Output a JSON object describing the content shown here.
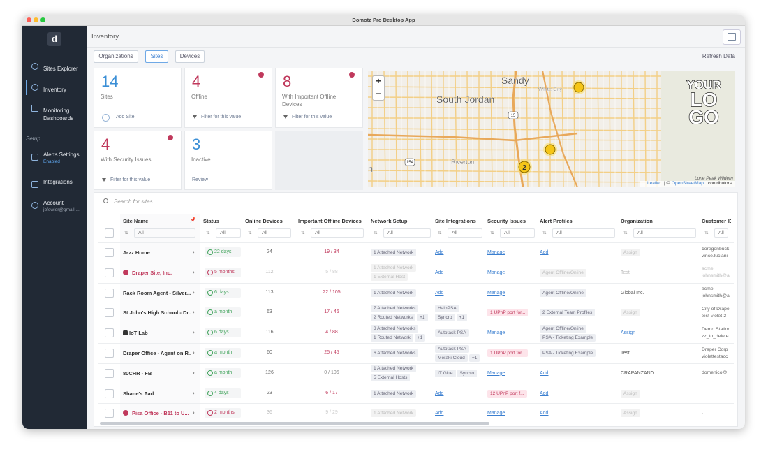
{
  "window": {
    "title": "Domotz Pro Desktop App"
  },
  "sidebar": {
    "items": [
      {
        "label": "Sites Explorer"
      },
      {
        "label": "Inventory"
      },
      {
        "label": "Monitoring Dashboards"
      }
    ],
    "active": 1,
    "section": "Setup",
    "setup_items": [
      {
        "label": "Alerts Settings",
        "sub": "Enabled"
      },
      {
        "label": "Integrations"
      },
      {
        "label": "Account",
        "sub": "jbfowler@gmail...."
      }
    ]
  },
  "header": {
    "title": "Inventory",
    "tabs": [
      "Organizations",
      "Sites",
      "Devices"
    ],
    "active_tab": 1,
    "refresh": "Refresh Data"
  },
  "cards": [
    {
      "value": 14,
      "label": "Sites",
      "action": "Add Site",
      "color": "#3b8fd6",
      "alert": false
    },
    {
      "value": 4,
      "label": "Offline",
      "action": "Filter for this value",
      "color": "#c0395c",
      "alert": true
    },
    {
      "value": 8,
      "label": "With Important Offline Devices",
      "action": "Filter for this value",
      "color": "#c0395c",
      "alert": true
    },
    {
      "value": 4,
      "label": "With Security Issues",
      "action": "Filter for this value",
      "color": "#c0395c",
      "alert": true
    },
    {
      "value": 3,
      "label": "Inactive",
      "action": "Review",
      "color": "#3b8fd6",
      "alert": false
    }
  ],
  "map": {
    "labels": [
      "Sandy",
      "White City",
      "South Jordan",
      "Riverton",
      "n"
    ],
    "shields": [
      "15",
      "154"
    ],
    "cluster": "2",
    "logo": [
      "YOUR",
      "LO",
      "GO"
    ],
    "corner": "Lone Peak Wildern",
    "zoom": [
      "+",
      "−"
    ],
    "attribution": {
      "leaflet": "Leaflet",
      "sep": "| ©",
      "osm": "OpenStreetMap",
      "tail": "contributors"
    }
  },
  "search": {
    "placeholder": "Search for sites"
  },
  "table": {
    "columns": [
      "Site Name",
      "Status",
      "Online Devices",
      "Important Offline Devices",
      "Network Setup",
      "Site Integrations",
      "Security Issues",
      "Alert Profiles",
      "Organization",
      "Customer ID"
    ],
    "filter": "All",
    "rows": [
      {
        "name": "Jazz Home",
        "offline": false,
        "status": "22 days",
        "online": 24,
        "important_offline": "19 / 34",
        "network": {
          "chips": [
            "1 Attached Network"
          ]
        },
        "integrations": {
          "link": "Add"
        },
        "security": {
          "link": "Manage"
        },
        "alert_profiles": {
          "link": "Add"
        },
        "organization": {
          "chip": "Assign"
        },
        "customer_id": [
          "1oregonbuck",
          "vince.luciani"
        ]
      },
      {
        "name": "Draper Site, Inc.",
        "offline": true,
        "status": "5 months",
        "online": 112,
        "important_offline": "5 / 88",
        "network": {
          "chips": [
            "1 Attached Network",
            "1 External Host"
          ]
        },
        "integrations": {
          "link": "Add"
        },
        "security": {
          "link": "Manage"
        },
        "alert_profiles": {
          "chips": [
            "Agent Offline/Online"
          ]
        },
        "organization": "Test",
        "customer_id": [
          "acme",
          "johnsmith@a"
        ]
      },
      {
        "name": "Rack Room Agent - Silver...",
        "offline": false,
        "status": "6 days",
        "online": 113,
        "important_offline": "22 / 105",
        "network": {
          "chips": [
            "1 Attached Network"
          ]
        },
        "integrations": {
          "link": "Add"
        },
        "security": {
          "link": "Manage"
        },
        "alert_profiles": {
          "chips": [
            "Agent Offline/Online"
          ]
        },
        "organization": "Global Inc.",
        "customer_id": [
          "acme",
          "johnsmith@a"
        ]
      },
      {
        "name": "St John's High School - Dr...",
        "offline": false,
        "status": "a month",
        "online": 63,
        "important_offline": "17 / 46",
        "network": {
          "chips": [
            "7 Attached Networks",
            "2 Routed Networks"
          ],
          "more": "+1"
        },
        "integrations": {
          "chips": [
            "HaloPSA",
            "Syncro"
          ],
          "more": "+1"
        },
        "security": {
          "alert": "1 UPnP port for..."
        },
        "alert_profiles": {
          "chips": [
            "2 External Team Profiles"
          ]
        },
        "organization": {
          "chip": "Assign"
        },
        "customer_id": [
          "City of Drape",
          "test-violet-2"
        ]
      },
      {
        "name": "IoT Lab",
        "offline": false,
        "status": "6 days",
        "online": 116,
        "important_offline": "4 / 88",
        "network": {
          "chips": [
            "3 Attached Networks",
            "1 Routed Network"
          ],
          "more": "+1"
        },
        "integrations": {
          "chips": [
            "Autotask PSA"
          ]
        },
        "security": {
          "link": "Manage"
        },
        "alert_profiles": {
          "chips": [
            "Agent Offline/Online",
            "PSA - Ticketing Example"
          ]
        },
        "organization": {
          "link": "Assign"
        },
        "customer_id": [
          "Demo Station",
          "zz_to_delete"
        ]
      },
      {
        "name": "Draper Office - Agent on R...",
        "offline": false,
        "status": "a month",
        "online": 60,
        "important_offline": "25 / 45",
        "network": {
          "chips": [
            "6 Attached Networks"
          ]
        },
        "integrations": {
          "chips": [
            "Autotask PSA",
            "Meraki Cloud"
          ],
          "more": "+1"
        },
        "security": {
          "alert": "1 UPnP port for..."
        },
        "alert_profiles": {
          "chips": [
            "PSA - Ticketing Example"
          ]
        },
        "organization": "Test",
        "customer_id": [
          "Draper Corp",
          "violettestacc"
        ]
      },
      {
        "name": "80CHR - FB",
        "offline": false,
        "status": "a month",
        "online": 126,
        "important_offline": "0 / 106",
        "network": {
          "chips": [
            "1 Attached Network",
            "5 External Hosts"
          ]
        },
        "integrations": {
          "chips": [
            "IT Glue",
            "Syncro"
          ]
        },
        "security": {
          "link": "Manage"
        },
        "alert_profiles": {
          "link": "Add"
        },
        "organization": "CRAPANZANO",
        "customer_id": [
          "domenico@"
        ]
      },
      {
        "name": "Shane's Pad",
        "offline": false,
        "status": "4 days",
        "online": 23,
        "important_offline": "6 / 17",
        "network": {
          "chips": [
            "1 Attached Network"
          ]
        },
        "integrations": {
          "link": "Add"
        },
        "security": {
          "alert": "12 UPnP port f..."
        },
        "alert_profiles": {
          "link": "Add"
        },
        "organization": {
          "chip": "Assign"
        },
        "customer_id": [
          "-"
        ]
      },
      {
        "name": "Pisa Office - B11 to U...",
        "offline": true,
        "status": "2 months",
        "online": 36,
        "important_offline": "9 / 29",
        "network": {
          "chips": [
            "1 Attached Network"
          ]
        },
        "integrations": {
          "link": "Add"
        },
        "security": {
          "link": "Manage"
        },
        "alert_profiles": {
          "link": "Add"
        },
        "organization": {
          "chip": "Assign"
        },
        "customer_id": [
          "-"
        ]
      }
    ]
  }
}
